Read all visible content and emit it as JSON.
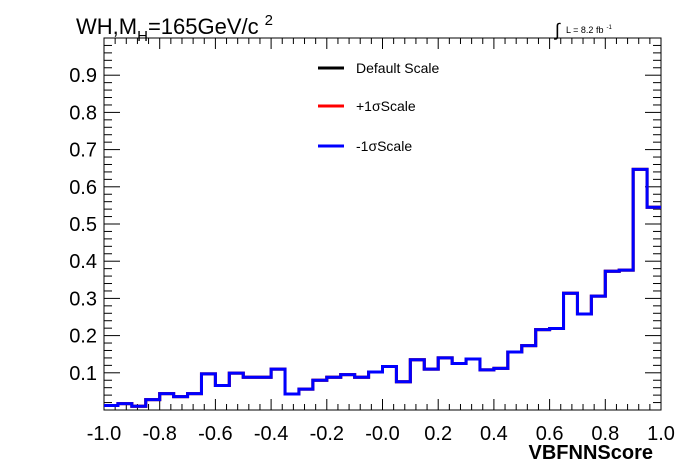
{
  "title": {
    "prefix": "WH,M",
    "subscript": "H",
    "middle": "=165GeV/c",
    "superscript": "2"
  },
  "luminosity": {
    "integral": "∫",
    "text": "L = 8.2 fb",
    "superscript": "-1"
  },
  "legend": [
    {
      "label": "Default Scale",
      "color": "#000000"
    },
    {
      "label": "+1σScale",
      "color": "#ff0000"
    },
    {
      "label": "-1σScale",
      "color": "#0000ff"
    }
  ],
  "chart_data": {
    "type": "line",
    "title": "WH,M_H=165GeV/c^2",
    "xlabel": "VBFNNScore",
    "ylabel": "",
    "xlim": [
      -1.0,
      1.0
    ],
    "ylim": [
      0.0,
      1.0
    ],
    "x_tick_labels": [
      "-1.0",
      "-0.8",
      "-0.6",
      "-0.4",
      "-0.2",
      "-0.0",
      "0.2",
      "0.4",
      "0.6",
      "0.8",
      "1.0"
    ],
    "x_tick_values": [
      -1.0,
      -0.8,
      -0.6,
      -0.4,
      -0.2,
      0.0,
      0.2,
      0.4,
      0.6,
      0.8,
      1.0
    ],
    "y_tick_labels": [
      "0.1",
      "0.2",
      "0.3",
      "0.4",
      "0.5",
      "0.6",
      "0.7",
      "0.8",
      "0.9"
    ],
    "y_tick_values": [
      0.1,
      0.2,
      0.3,
      0.4,
      0.5,
      0.6,
      0.7,
      0.8,
      0.9
    ],
    "bin_edges": [
      -1.0,
      -0.95,
      -0.9,
      -0.85,
      -0.8,
      -0.75,
      -0.7,
      -0.65,
      -0.6,
      -0.55,
      -0.5,
      -0.45,
      -0.4,
      -0.35,
      -0.3,
      -0.25,
      -0.2,
      -0.15,
      -0.1,
      -0.05,
      0.0,
      0.05,
      0.1,
      0.15,
      0.2,
      0.25,
      0.3,
      0.35,
      0.4,
      0.45,
      0.5,
      0.55,
      0.6,
      0.65,
      0.7,
      0.75,
      0.8,
      0.85,
      0.9,
      0.95,
      1.0
    ],
    "series": [
      {
        "name": "Default Scale",
        "color": "#000000",
        "values": [
          0.012,
          0.017,
          0.01,
          0.028,
          0.044,
          0.036,
          0.044,
          0.097,
          0.066,
          0.099,
          0.088,
          0.088,
          0.11,
          0.043,
          0.056,
          0.08,
          0.088,
          0.095,
          0.088,
          0.102,
          0.117,
          0.076,
          0.135,
          0.11,
          0.14,
          0.125,
          0.137,
          0.108,
          0.112,
          0.156,
          0.173,
          0.216,
          0.219,
          0.314,
          0.258,
          0.306,
          0.373,
          0.376,
          0.647,
          0.545
        ]
      },
      {
        "name": "+1σScale",
        "color": "#ff0000",
        "values": [
          0.012,
          0.017,
          0.01,
          0.028,
          0.044,
          0.036,
          0.044,
          0.097,
          0.066,
          0.099,
          0.088,
          0.088,
          0.11,
          0.043,
          0.056,
          0.08,
          0.088,
          0.095,
          0.088,
          0.102,
          0.117,
          0.076,
          0.135,
          0.11,
          0.14,
          0.125,
          0.137,
          0.108,
          0.112,
          0.156,
          0.173,
          0.216,
          0.219,
          0.314,
          0.258,
          0.306,
          0.373,
          0.376,
          0.647,
          0.545
        ]
      },
      {
        "name": "-1σScale",
        "color": "#0000ff",
        "values": [
          0.012,
          0.017,
          0.01,
          0.028,
          0.044,
          0.036,
          0.044,
          0.097,
          0.066,
          0.099,
          0.088,
          0.088,
          0.11,
          0.043,
          0.056,
          0.08,
          0.088,
          0.095,
          0.088,
          0.102,
          0.117,
          0.076,
          0.135,
          0.11,
          0.14,
          0.125,
          0.137,
          0.108,
          0.112,
          0.156,
          0.173,
          0.216,
          0.219,
          0.314,
          0.258,
          0.306,
          0.373,
          0.376,
          0.647,
          0.545
        ]
      }
    ],
    "grid": false,
    "legend_position": "top-center"
  }
}
